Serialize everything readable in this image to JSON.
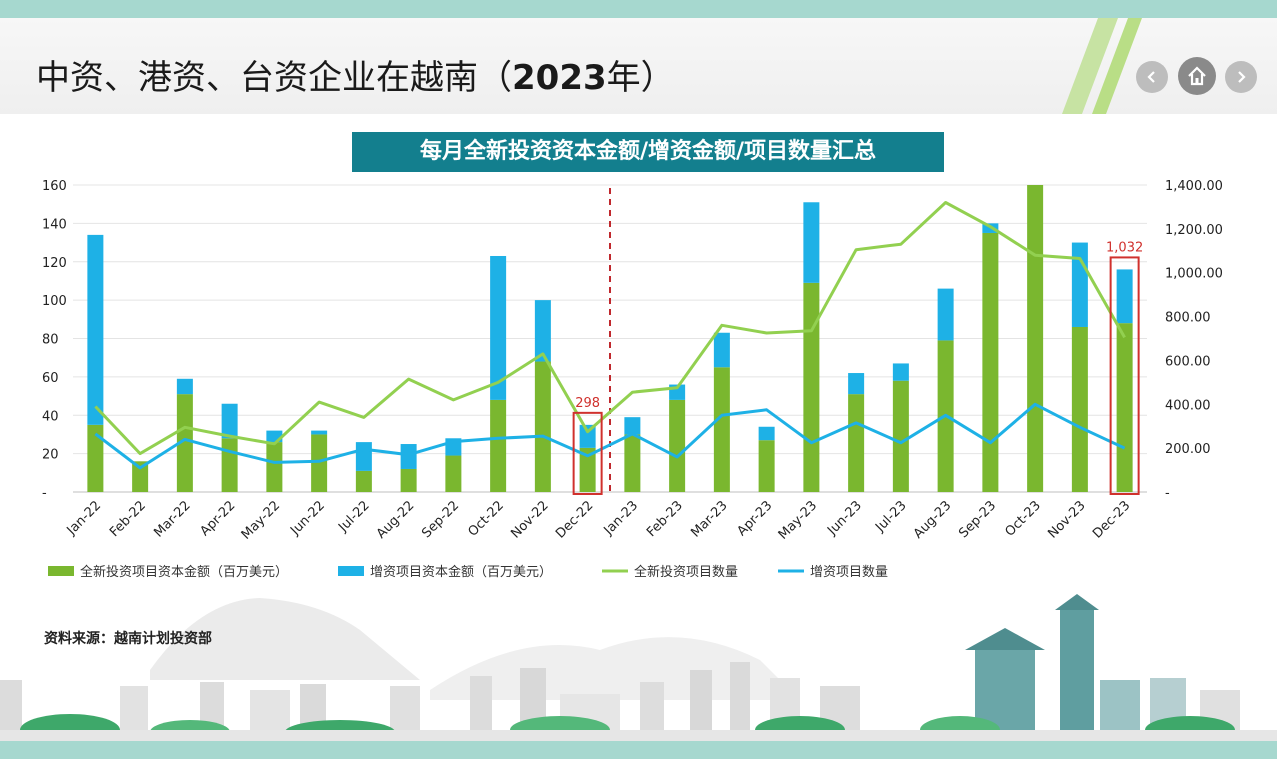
{
  "header": {
    "title_regular": "中资、港资、台资企业在越南（",
    "title_bold": "2023",
    "title_tail": "年）"
  },
  "nav": {
    "prev_icon": "chevron-left-icon",
    "home_icon": "home-icon",
    "next_icon": "chevron-right-icon"
  },
  "source": "资料来源：越南计划投资部",
  "chart_data": {
    "type": "bar",
    "title": "每月全新投资资本金额/增资金额/项目数量汇总",
    "categories": [
      "Jan-22",
      "Feb-22",
      "Mar-22",
      "Apr-22",
      "May-22",
      "Jun-22",
      "Jul-22",
      "Aug-22",
      "Sep-22",
      "Oct-22",
      "Nov-22",
      "Dec-22",
      "Jan-23",
      "Feb-23",
      "Mar-23",
      "Apr-23",
      "May-23",
      "Jun-23",
      "Jul-23",
      "Aug-23",
      "Sep-23",
      "Oct-23",
      "Nov-23",
      "Dec-23"
    ],
    "stacked": true,
    "series": [
      {
        "name": "全新投资项目资本金额（百万美元）",
        "kind": "bar",
        "axis": "left",
        "color": "#7ab72f",
        "values": [
          35,
          16,
          51,
          28,
          26,
          30,
          11,
          12,
          19,
          48,
          68,
          23,
          30,
          48,
          65,
          27,
          109,
          51,
          58,
          79,
          135,
          160,
          86,
          88
        ]
      },
      {
        "name": "增资项目资本金额（百万美元）",
        "kind": "bar",
        "axis": "left",
        "color": "#1eb1e6",
        "values": [
          99,
          0,
          8,
          18,
          6,
          2,
          15,
          13,
          9,
          75,
          32,
          12,
          9,
          8,
          18,
          7,
          42,
          11,
          9,
          27,
          5,
          0,
          44,
          28
        ]
      },
      {
        "name": "全新投资项目数量",
        "kind": "line",
        "axis": "right",
        "color": "#92d050",
        "values": [
          390,
          175,
          295,
          255,
          220,
          410,
          340,
          515,
          420,
          500,
          630,
          275,
          455,
          475,
          760,
          725,
          735,
          1105,
          1130,
          1320,
          1210,
          1080,
          1065,
          705
        ]
      },
      {
        "name": "增资项目数量",
        "kind": "line",
        "axis": "right",
        "color": "#1eb1e6",
        "values": [
          265,
          110,
          240,
          185,
          135,
          140,
          195,
          170,
          230,
          245,
          255,
          165,
          265,
          160,
          350,
          375,
          225,
          315,
          225,
          350,
          225,
          400,
          295,
          200
        ]
      }
    ],
    "y_left": {
      "min": 0,
      "max": 160,
      "ticks": [
        "-",
        "20",
        "40",
        "60",
        "80",
        "100",
        "120",
        "140",
        "160"
      ]
    },
    "y_right": {
      "min": 0,
      "max": 1400,
      "ticks": [
        "-",
        "200.00",
        "400.00",
        "600.00",
        "800.00",
        "1,000.00",
        "1,200.00",
        "1,400.00"
      ]
    },
    "annotations": [
      {
        "category": "Dec-22",
        "label": "298",
        "color": "#d0312d"
      },
      {
        "category": "Dec-23",
        "label": "1,032",
        "color": "#d0312d"
      }
    ],
    "divider_after": "Dec-22",
    "legend_position": "bottom",
    "grid": true
  }
}
